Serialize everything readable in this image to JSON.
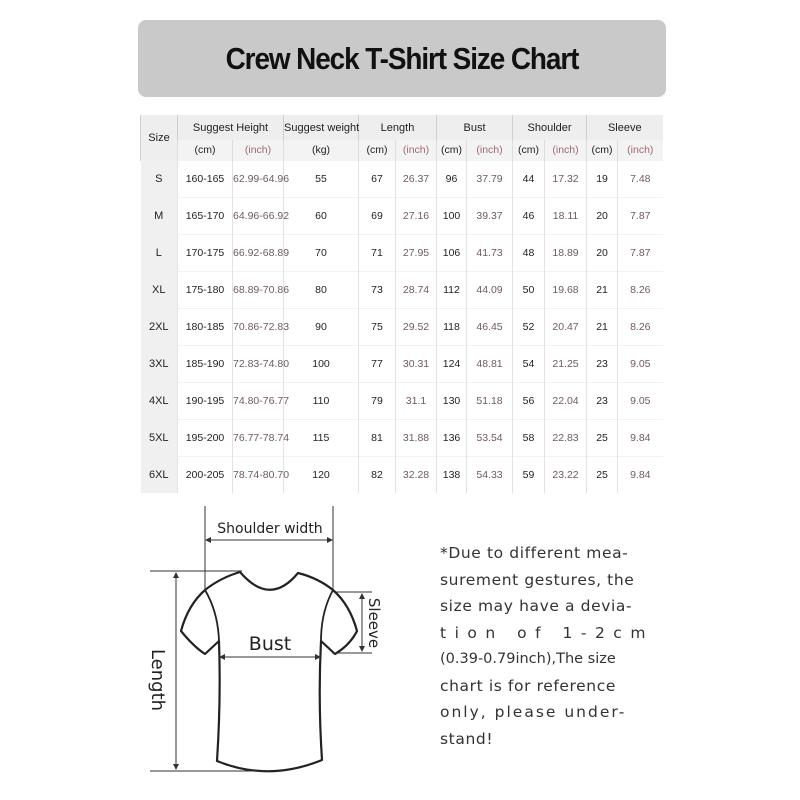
{
  "title": "Crew Neck T-Shirt Size Chart",
  "table": {
    "headers": [
      {
        "label": "Size",
        "span": 1
      },
      {
        "label": "Suggest Height",
        "span": 2
      },
      {
        "label": "Suggest weight",
        "span": 1
      },
      {
        "label": "Length",
        "span": 2
      },
      {
        "label": "Bust",
        "span": 2
      },
      {
        "label": "Shoulder",
        "span": 2
      },
      {
        "label": "Sleeve",
        "span": 2
      }
    ],
    "units": [
      "(cm)",
      "(inch)",
      "(kg)",
      "(cm)",
      "(inch)",
      "(cm)",
      "(inch)",
      "(cm)",
      "(inch)",
      "(cm)",
      "(inch)"
    ],
    "rows": [
      [
        "S",
        "160-165",
        "62.99-64.96",
        "55",
        "67",
        "26.37",
        "96",
        "37.79",
        "44",
        "17.32",
        "19",
        "7.48"
      ],
      [
        "M",
        "165-170",
        "64.96-66.92",
        "60",
        "69",
        "27.16",
        "100",
        "39.37",
        "46",
        "18.11",
        "20",
        "7.87"
      ],
      [
        "L",
        "170-175",
        "66.92-68.89",
        "70",
        "71",
        "27.95",
        "106",
        "41.73",
        "48",
        "18.89",
        "20",
        "7.87"
      ],
      [
        "XL",
        "175-180",
        "68.89-70.86",
        "80",
        "73",
        "28.74",
        "112",
        "44.09",
        "50",
        "19.68",
        "21",
        "8.26"
      ],
      [
        "2XL",
        "180-185",
        "70.86-72.83",
        "90",
        "75",
        "29.52",
        "118",
        "46.45",
        "52",
        "20.47",
        "21",
        "8.26"
      ],
      [
        "3XL",
        "185-190",
        "72.83-74.80",
        "100",
        "77",
        "30.31",
        "124",
        "48.81",
        "54",
        "21.25",
        "23",
        "9.05"
      ],
      [
        "4XL",
        "190-195",
        "74.80-76.77",
        "110",
        "79",
        "31.1",
        "130",
        "51.18",
        "56",
        "22.04",
        "23",
        "9.05"
      ],
      [
        "5XL",
        "195-200",
        "76.77-78.74",
        "115",
        "81",
        "31.88",
        "136",
        "53.54",
        "58",
        "22.83",
        "25",
        "9.84"
      ],
      [
        "6XL",
        "200-205",
        "78.74-80.70",
        "120",
        "82",
        "32.28",
        "138",
        "54.33",
        "59",
        "23.22",
        "25",
        "9.84"
      ]
    ]
  },
  "diagram": {
    "shoulder_label": "Shoulder width",
    "bust_label": "Bust",
    "length_label": "Length",
    "sleeve_label": "Sleeve"
  },
  "note": [
    "*Due to different mea-",
    "surement gestures, the",
    "size may have a devia-",
    "tion of 1-2cm",
    "(0.39-0.79inch),The size",
    "chart is for reference",
    "only, please under-",
    "stand!"
  ],
  "colors": {
    "banner": "#c9c9c9",
    "inch_text": "#9b6a72"
  }
}
